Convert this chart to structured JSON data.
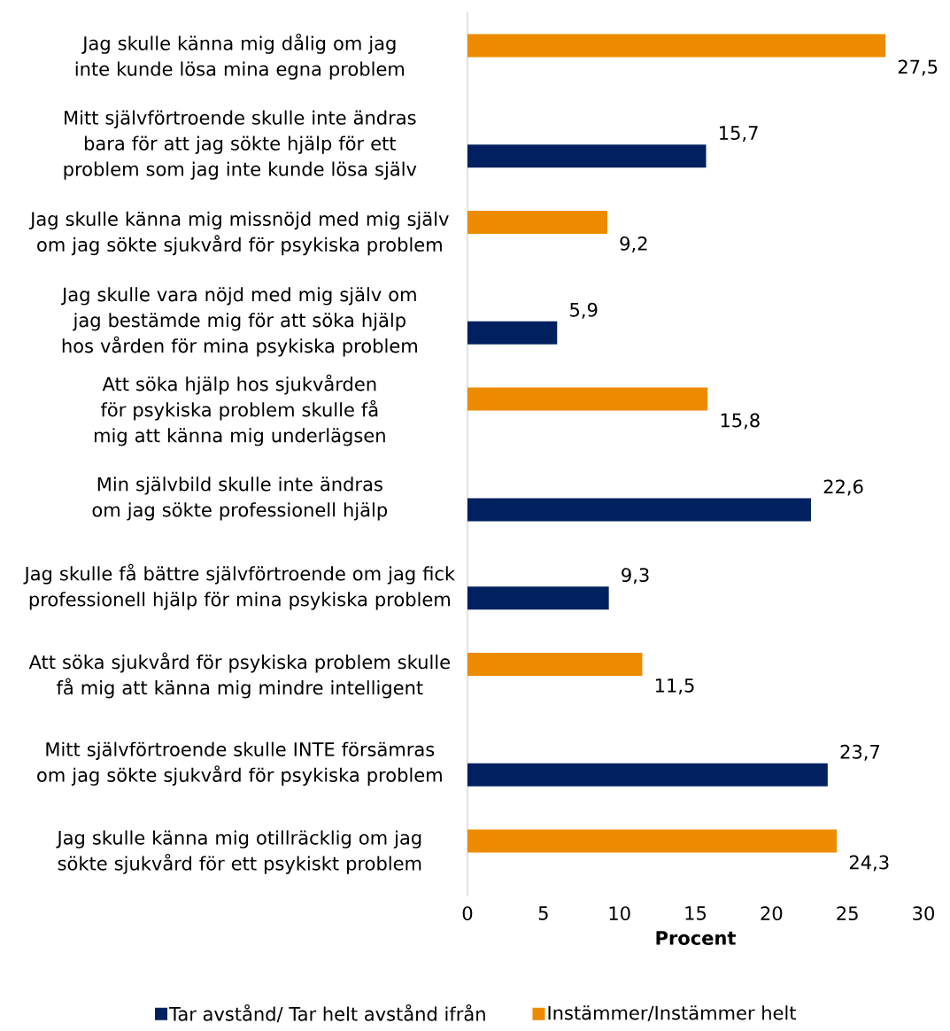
{
  "chart_data": {
    "type": "bar",
    "orientation": "horizontal",
    "xlabel": "Procent",
    "categories": [
      "Jag skulle känna mig dålig om jag inte kunde lösa mina egna problem",
      "Mitt självförtroende skulle inte ändras bara för att jag sökte hjälp för ett problem som jag inte kunde lösa själv",
      "Jag skulle känna mig missnöjd med mig själv om jag sökte sjukvård för psykiska problem",
      "Jag skulle vara nöjd med mig själv om jag bestämde mig för att söka hjälp hos vården för mina psykiska problem",
      "Att söka hjälp hos sjukvården för psykiska problem skulle få mig att känna mig underlägsen",
      "Min självbild skulle inte ändras om jag sökte professionell hjälp",
      "Jag skulle få bättre självförtroende om jag fick professionell hjälp för mina psykiska problem",
      "Att söka sjukvård för psykiska problem skulle få mig att känna mig mindre intelligent",
      "Mitt självförtroende skulle INTE försämras om jag sökte sjukvård för psykiska problem",
      "Jag skulle känna mig otillräcklig om jag sökte sjukvård för ett psykiskt problem"
    ],
    "series": [
      {
        "name": "Tar avstånd/ Tar helt avstånd ifrån",
        "color": "#002060",
        "values": [
          null,
          15.7,
          null,
          5.9,
          null,
          22.6,
          9.3,
          null,
          23.7,
          null
        ],
        "value_labels": [
          null,
          "15,7",
          null,
          "5,9",
          null,
          "22,6",
          "9,3",
          null,
          "23,7",
          null
        ]
      },
      {
        "name": "Instämmer/Instämmer helt",
        "color": "#ed8b00",
        "values": [
          27.5,
          null,
          9.2,
          null,
          15.8,
          null,
          null,
          11.5,
          null,
          24.3
        ],
        "value_labels": [
          "27,5",
          null,
          "9,2",
          null,
          "15,8",
          null,
          null,
          "11,5",
          null,
          "24,3"
        ]
      }
    ],
    "xlim": [
      0,
      30
    ],
    "xticks": [
      0,
      5,
      10,
      15,
      20,
      25,
      30
    ],
    "grid": false,
    "legend": "bottom"
  }
}
